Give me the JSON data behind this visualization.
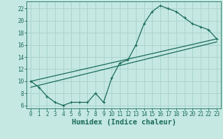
{
  "xlabel": "Humidex (Indice chaleur)",
  "ylabel": "",
  "xlim": [
    -0.5,
    23.5
  ],
  "ylim": [
    5.5,
    23.2
  ],
  "bg_color": "#c5e8e2",
  "grid_color": "#aad4cc",
  "line_color": "#1a6b5a",
  "line1_x": [
    0,
    1,
    2,
    3,
    4,
    5,
    6,
    7,
    8,
    9,
    10,
    11,
    12,
    13,
    14,
    15,
    16,
    17,
    18,
    19,
    20,
    21,
    22,
    23
  ],
  "line1_y": [
    10,
    9,
    7.5,
    6.5,
    6,
    6.5,
    6.5,
    6.5,
    8.0,
    6.5,
    10.5,
    13.0,
    13.5,
    16.0,
    19.5,
    21.5,
    22.5,
    22.0,
    21.5,
    20.5,
    19.5,
    19.0,
    18.5,
    17.0
  ],
  "line2_x": [
    0,
    23
  ],
  "line2_y": [
    10,
    17
  ],
  "line3_x": [
    0,
    23
  ],
  "line3_y": [
    9,
    16.5
  ],
  "xticks": [
    0,
    1,
    2,
    3,
    4,
    5,
    6,
    7,
    8,
    9,
    10,
    11,
    12,
    13,
    14,
    15,
    16,
    17,
    18,
    19,
    20,
    21,
    22,
    23
  ],
  "yticks": [
    6,
    8,
    10,
    12,
    14,
    16,
    18,
    20,
    22
  ],
  "tick_fontsize": 5.5,
  "label_fontsize": 7.5
}
